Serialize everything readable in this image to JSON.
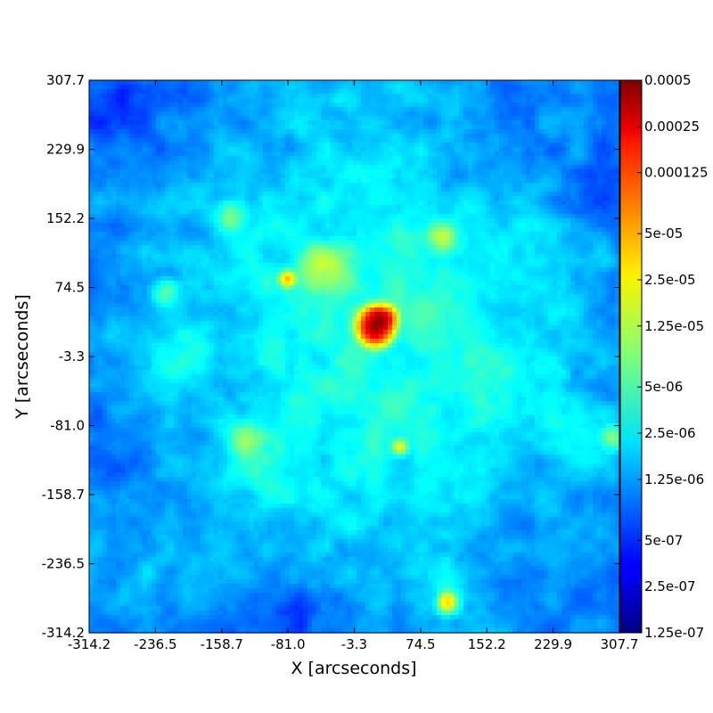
{
  "chart_data": {
    "type": "heatmap",
    "title": "",
    "xlabel": "X [arcseconds]",
    "ylabel": "Y [arcseconds]",
    "x_ticks": [
      "-314.2",
      "-236.5",
      "-158.7",
      "-81.0",
      "-3.3",
      "74.5",
      "152.2",
      "229.9",
      "307.7"
    ],
    "y_ticks": [
      "-314.2",
      "-236.5",
      "-158.7",
      "-81.0",
      "-3.3",
      "74.5",
      "152.2",
      "229.9",
      "307.7"
    ],
    "xlim": [
      -314.2,
      307.7
    ],
    "ylim": [
      -314.2,
      307.7
    ],
    "colormap": "jet",
    "color_scale": "log",
    "colorbar_range": [
      1.25e-07,
      0.0005
    ],
    "colorbar_ticks": [
      "0.0005",
      "0.00025",
      "0.000125",
      "5e-05",
      "2.5e-05",
      "1.25e-05",
      "5e-06",
      "2.5e-06",
      "1.25e-06",
      "5e-07",
      "2.5e-07",
      "1.25e-07"
    ],
    "colorbar_tick_values": [
      0.0005,
      0.00025,
      0.000125,
      5e-05,
      2.5e-05,
      1.25e-05,
      5e-06,
      2.5e-06,
      1.25e-06,
      5e-07,
      2.5e-07,
      1.25e-07
    ],
    "background_level": 1e-06,
    "features": [
      {
        "kind": "diffuse",
        "x": 5,
        "y": 10,
        "sigma": 150,
        "peak": 1.8e-06
      },
      {
        "kind": "diffuse",
        "x": 40,
        "y": 60,
        "sigma": 60,
        "peak": 1.2e-06
      },
      {
        "kind": "diffuse",
        "x": -200,
        "y": 0,
        "sigma": 25,
        "peak": 1.2e-06
      },
      {
        "kind": "diffuse",
        "x": -120,
        "y": -120,
        "sigma": 30,
        "peak": 1.5e-06
      },
      {
        "kind": "diffuse",
        "x": 30,
        "y": -100,
        "sigma": 90,
        "peak": 8e-07
      },
      {
        "kind": "diffuse",
        "x": 90,
        "y": -270,
        "sigma": 30,
        "peak": 1.2e-06
      },
      {
        "kind": "diffuse",
        "x": 200,
        "y": 100,
        "sigma": 60,
        "peak": 6e-07
      },
      {
        "kind": "diffuse",
        "x": -140,
        "y": 140,
        "sigma": 40,
        "peak": 8e-07
      },
      {
        "kind": "diffuse",
        "x": 0,
        "y": 260,
        "sigma": 50,
        "peak": 6e-07
      },
      {
        "kind": "diffuse",
        "x": 270,
        "y": -100,
        "sigma": 40,
        "peak": 7e-07
      },
      {
        "kind": "diffuse",
        "x": -230,
        "y": -250,
        "sigma": 35,
        "peak": 7e-07
      },
      {
        "kind": "diffuse",
        "x": 180,
        "y": -30,
        "sigma": 45,
        "peak": 6e-07
      },
      {
        "kind": "diffuse",
        "x": -280,
        "y": 280,
        "sigma": 40,
        "peak": -5.5e-07
      },
      {
        "kind": "diffuse",
        "x": -60,
        "y": -290,
        "sigma": 50,
        "peak": -5e-07
      },
      {
        "kind": "diffuse",
        "x": -290,
        "y": -100,
        "sigma": 35,
        "peak": -4.5e-07
      },
      {
        "kind": "diffuse",
        "x": 280,
        "y": 180,
        "sigma": 40,
        "peak": -4e-07
      },
      {
        "kind": "source",
        "x": 22,
        "y": 30,
        "sigma": 9,
        "peak": 0.00045
      },
      {
        "kind": "source",
        "x": 30,
        "y": 38,
        "sigma": 7,
        "peak": 0.00025
      },
      {
        "kind": "source",
        "x": -81,
        "y": 84,
        "sigma": 5,
        "peak": 3.5e-05
      },
      {
        "kind": "source",
        "x": 50,
        "y": -105,
        "sigma": 5,
        "peak": 2e-05
      },
      {
        "kind": "source",
        "x": 105,
        "y": -280,
        "sigma": 6,
        "peak": 2e-05
      },
      {
        "kind": "source",
        "x": -40,
        "y": 95,
        "sigma": 16,
        "peak": 1.2e-05
      },
      {
        "kind": "source",
        "x": 100,
        "y": 130,
        "sigma": 10,
        "peak": 8e-06
      },
      {
        "kind": "source",
        "x": -150,
        "y": 155,
        "sigma": 10,
        "peak": 6e-06
      },
      {
        "kind": "source",
        "x": -130,
        "y": -95,
        "sigma": 12,
        "peak": 6e-06
      },
      {
        "kind": "source",
        "x": -225,
        "y": 70,
        "sigma": 9,
        "peak": 5e-06
      },
      {
        "kind": "source",
        "x": 300,
        "y": -95,
        "sigma": 8,
        "peak": 5e-06
      }
    ]
  }
}
